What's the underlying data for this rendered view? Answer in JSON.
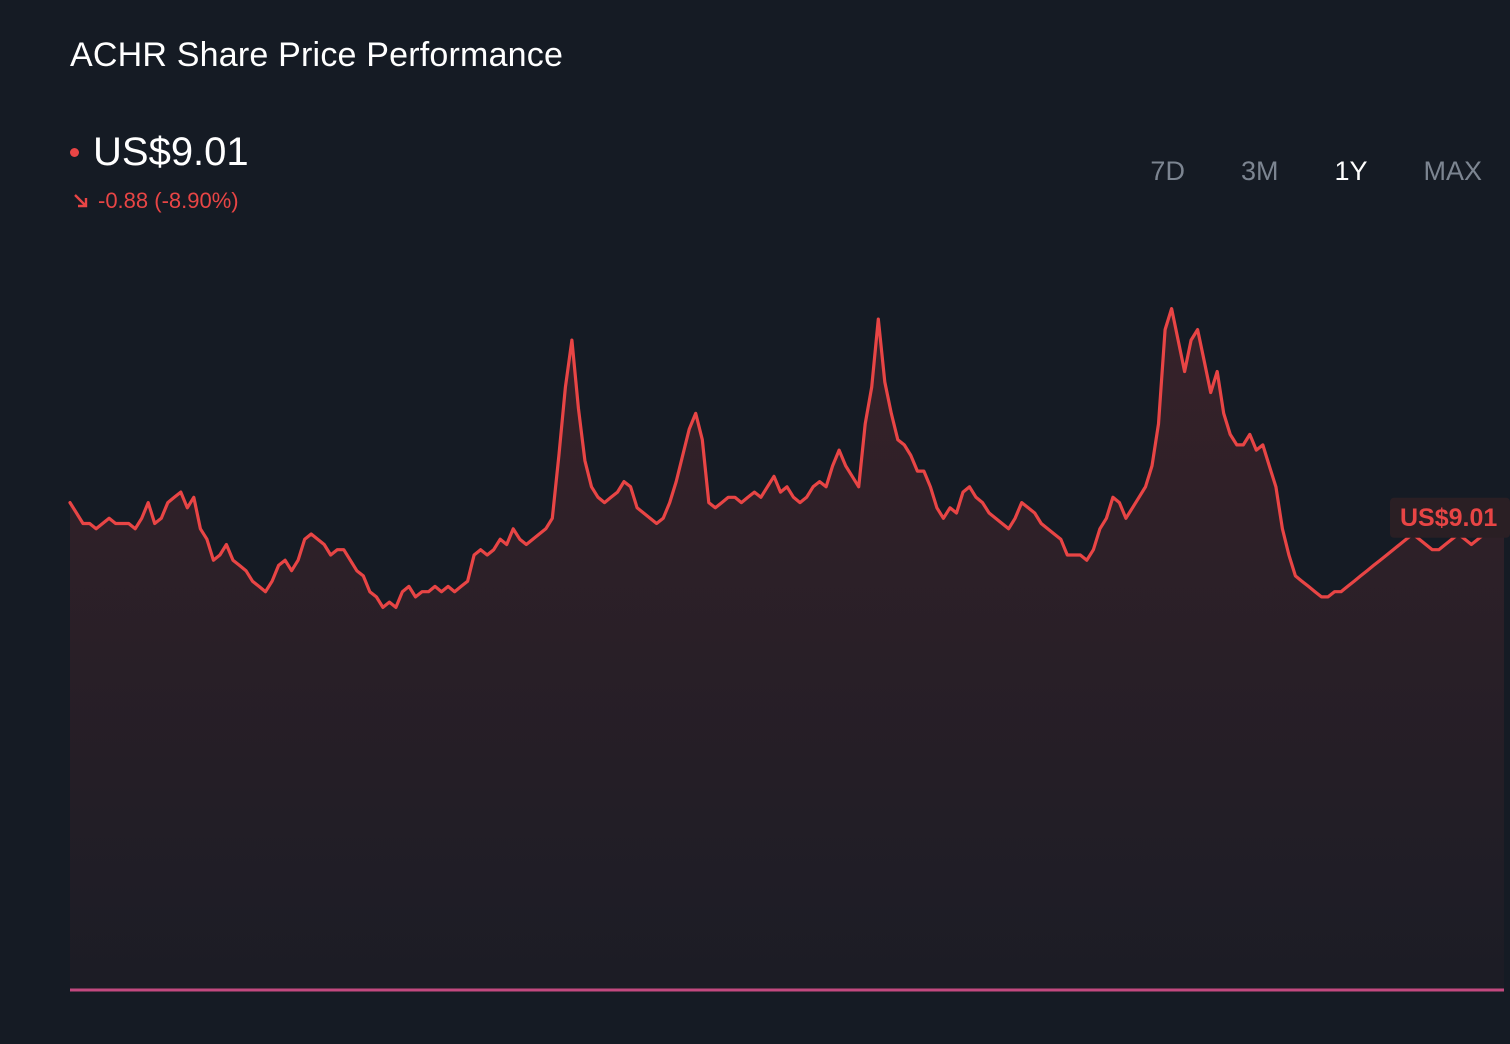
{
  "header": {
    "title": "ACHR Share Price Performance",
    "price": "US$9.01",
    "change": "-0.88 (-8.90%)"
  },
  "range_tabs": [
    {
      "label": "7D",
      "active": false
    },
    {
      "label": "3M",
      "active": false
    },
    {
      "label": "1Y",
      "active": true
    },
    {
      "label": "MAX",
      "active": false
    }
  ],
  "colors": {
    "background": "#151b24",
    "line": "#e84545",
    "baseline": "#c2497f",
    "label_bg": "#2a1f24"
  },
  "price_label": "US$9.01",
  "chart_data": {
    "type": "area",
    "title": "ACHR Share Price Performance",
    "range": "1Y",
    "ylim": [
      0,
      14.5
    ],
    "y": [
      9.3,
      9.1,
      8.9,
      8.9,
      8.8,
      8.9,
      9.0,
      8.9,
      8.9,
      8.9,
      8.8,
      9.0,
      9.3,
      8.9,
      9.0,
      9.3,
      9.4,
      9.5,
      9.2,
      9.4,
      8.8,
      8.6,
      8.2,
      8.3,
      8.5,
      8.2,
      8.1,
      8.0,
      7.8,
      7.7,
      7.6,
      7.8,
      8.1,
      8.2,
      8.0,
      8.2,
      8.6,
      8.7,
      8.6,
      8.5,
      8.3,
      8.4,
      8.4,
      8.2,
      8.0,
      7.9,
      7.6,
      7.5,
      7.3,
      7.4,
      7.3,
      7.6,
      7.7,
      7.5,
      7.6,
      7.6,
      7.7,
      7.6,
      7.7,
      7.6,
      7.7,
      7.8,
      8.3,
      8.4,
      8.3,
      8.4,
      8.6,
      8.5,
      8.8,
      8.6,
      8.5,
      8.6,
      8.7,
      8.8,
      9.0,
      10.2,
      11.5,
      12.4,
      11.1,
      10.1,
      9.6,
      9.4,
      9.3,
      9.4,
      9.5,
      9.7,
      9.6,
      9.2,
      9.1,
      9.0,
      8.9,
      9.0,
      9.3,
      9.7,
      10.2,
      10.7,
      11.0,
      10.5,
      9.3,
      9.2,
      9.3,
      9.4,
      9.4,
      9.3,
      9.4,
      9.5,
      9.4,
      9.6,
      9.8,
      9.5,
      9.6,
      9.4,
      9.3,
      9.4,
      9.6,
      9.7,
      9.6,
      10.0,
      10.3,
      10.0,
      9.8,
      9.6,
      10.8,
      11.5,
      12.8,
      11.6,
      11.0,
      10.5,
      10.4,
      10.2,
      9.9,
      9.9,
      9.6,
      9.2,
      9.0,
      9.2,
      9.1,
      9.5,
      9.6,
      9.4,
      9.3,
      9.1,
      9.0,
      8.9,
      8.8,
      9.0,
      9.3,
      9.2,
      9.1,
      8.9,
      8.8,
      8.7,
      8.6,
      8.3,
      8.3,
      8.3,
      8.2,
      8.4,
      8.8,
      9.0,
      9.4,
      9.3,
      9.0,
      9.2,
      9.4,
      9.6,
      10.0,
      10.8,
      12.6,
      13.0,
      12.4,
      11.8,
      12.4,
      12.6,
      12.0,
      11.4,
      11.8,
      11.0,
      10.6,
      10.4,
      10.4,
      10.6,
      10.3,
      10.4,
      10.0,
      9.6,
      8.8,
      8.3,
      7.9,
      7.8,
      7.7,
      7.6,
      7.5,
      7.5,
      7.6,
      7.6,
      7.7,
      7.8,
      7.9,
      8.0,
      8.1,
      8.2,
      8.3,
      8.4,
      8.5,
      8.6,
      8.7,
      8.6,
      8.5,
      8.4,
      8.4,
      8.5,
      8.6,
      8.7,
      8.6,
      8.5,
      8.6,
      8.7,
      8.8,
      8.9,
      9.01
    ],
    "last_value": 9.01
  }
}
